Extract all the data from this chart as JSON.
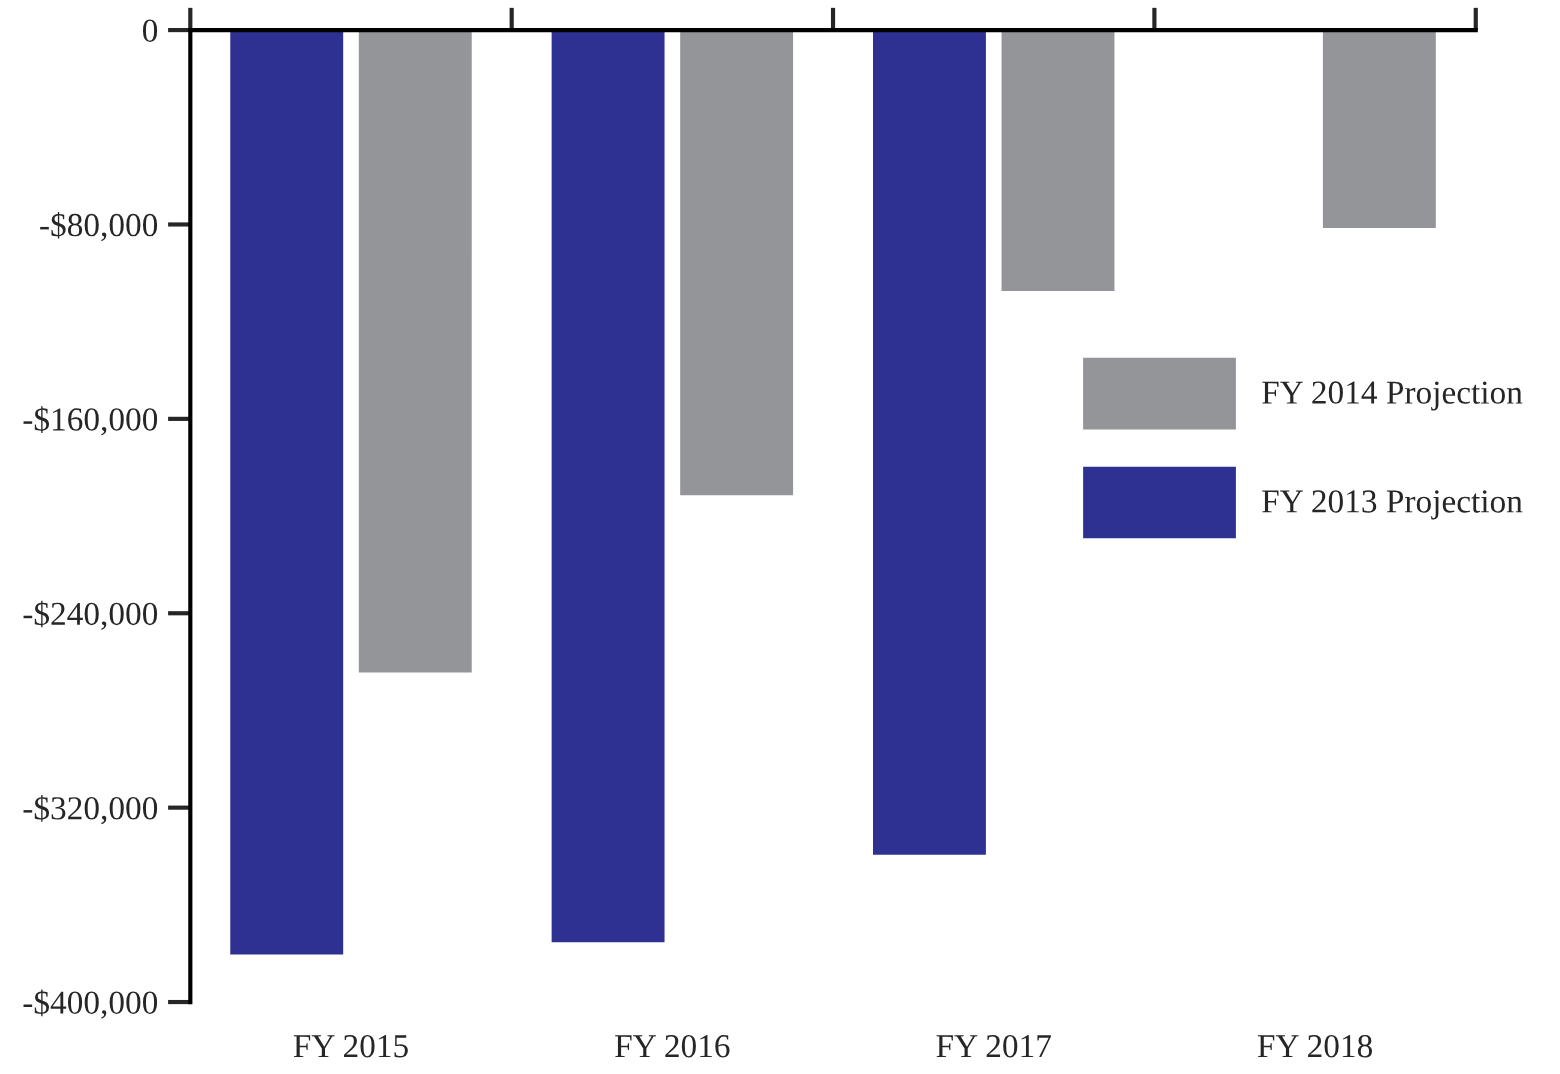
{
  "chart_data": {
    "type": "bar",
    "categories": [
      "FY 2015",
      "FY 2016",
      "FY 2017",
      "FY 2018"
    ],
    "series": [
      {
        "name": "FY 2013 Projection",
        "color": "#2e3192",
        "values": [
          -381000,
          -376000,
          -340000,
          null
        ]
      },
      {
        "name": "FY 2014 Projection",
        "color": "#939598",
        "values": [
          -265000,
          -192000,
          -108000,
          -82000
        ]
      }
    ],
    "ylim": [
      -400000,
      0
    ],
    "yticks": [
      {
        "value": -400000,
        "label": "-$400,000"
      },
      {
        "value": -320000,
        "label": "-$320,000"
      },
      {
        "value": -240000,
        "label": "-$240,000"
      },
      {
        "value": -160000,
        "label": "-$160,000"
      },
      {
        "value": -80000,
        "label": "-$80,000"
      },
      0
    ],
    "grid": false,
    "legend": "right"
  }
}
